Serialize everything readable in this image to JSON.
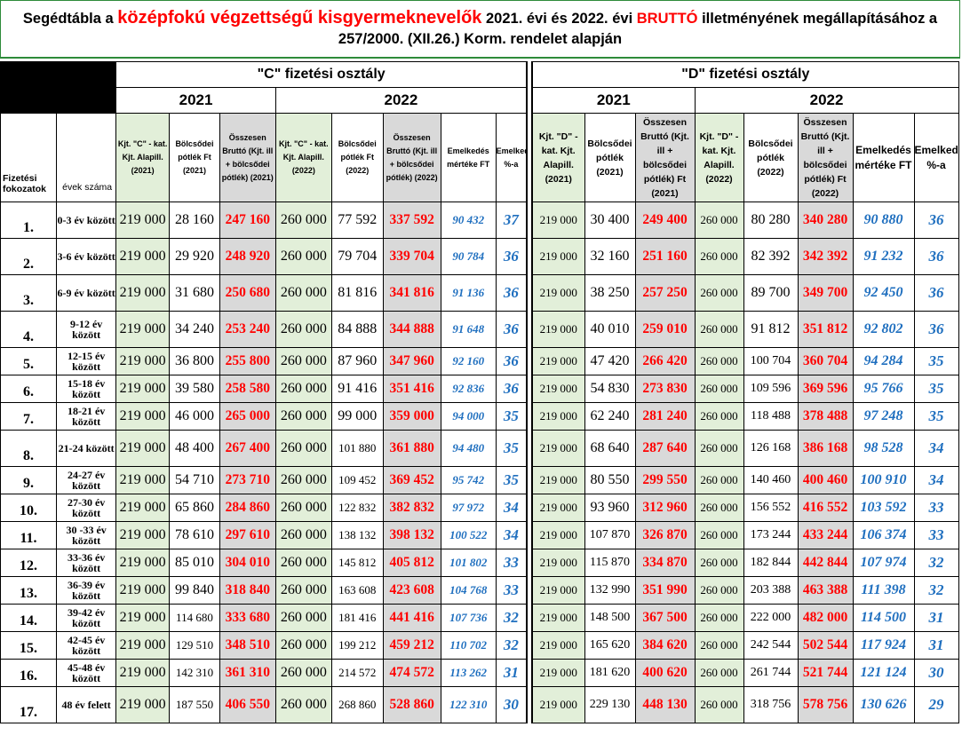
{
  "title": {
    "line1_pre": "Segédtábla a ",
    "line1_red1": "középfokú végzettségű kisgyermeknevelők",
    "line1_mid": " 2021. évi és 2022. évi ",
    "line1_red2": "BRUTTÓ",
    "line1_post": " illetményének megállapításához a",
    "line2": "257/2000. (XII.26.) Korm. rendelet alapján"
  },
  "classes": {
    "c": "\"C\" fizetési osztály",
    "d": "\"D\" fizetési osztály"
  },
  "years": {
    "y2021": "2021",
    "y2022": "2022"
  },
  "headers": {
    "fokozat": "Fizetési fokozatok",
    "evek": "évek száma",
    "c_base21": "Kjt. \"C\" - kat. Kjt. Alapill. (2021)",
    "c_potlek21": "Bölcsődei pótlék Ft (2021)",
    "c_total21": "Összesen Bruttó (Kjt. ill + bölcsődei pótlék) (2021)",
    "c_base22": "Kjt. \"C\" - kat. Kjt. Alapill. (2022)",
    "c_potlek22": "Bölcsődei pótlék Ft (2022)",
    "c_total22": "Összesen Bruttó (Kjt. ill + bölcsődei pótlék) (2022)",
    "c_inc": "Emelkedés mértéke FT",
    "c_pct": "Emelkedés %-a",
    "d_base21": "Kjt. \"D\" - kat. Kjt. Alapill. (2021)",
    "d_potlek21": "Bölcsődei pótlék (2021)",
    "d_total21": "Összesen Bruttó (Kjt. ill + bölcsődei pótlék) Ft (2021)",
    "d_base22": "Kjt. \"D\" - kat. Kjt. Alapill. (2022)",
    "d_potlek22": "Bölcsődei pótlék (2022)",
    "d_total22": "Összesen Bruttó (Kjt. ill + bölcsődei pótlék) Ft (2022)",
    "d_inc": "Emelkedés mértéke FT",
    "d_pct": "Emelkedés %-a"
  },
  "rows": [
    {
      "step": "1.",
      "interval": "0-3 év között",
      "c": [
        "219 000",
        "28 160",
        "247 160",
        "260 000",
        "77 592",
        "337 592",
        "90 432",
        "37"
      ],
      "d": [
        "219 000",
        "30 400",
        "249 400",
        "260 000",
        "80 280",
        "340 280",
        "90 880",
        "36"
      ]
    },
    {
      "step": "2.",
      "interval": "3-6 év között",
      "c": [
        "219 000",
        "29 920",
        "248 920",
        "260 000",
        "79 704",
        "339 704",
        "90 784",
        "36"
      ],
      "d": [
        "219 000",
        "32 160",
        "251 160",
        "260 000",
        "82 392",
        "342 392",
        "91 232",
        "36"
      ]
    },
    {
      "step": "3.",
      "interval": "6-9 év között",
      "c": [
        "219 000",
        "31 680",
        "250 680",
        "260 000",
        "81 816",
        "341 816",
        "91 136",
        "36"
      ],
      "d": [
        "219 000",
        "38 250",
        "257 250",
        "260 000",
        "89 700",
        "349 700",
        "92 450",
        "36"
      ]
    },
    {
      "step": "4.",
      "interval": "9-12 év között",
      "c": [
        "219 000",
        "34 240",
        "253 240",
        "260 000",
        "84 888",
        "344 888",
        "91 648",
        "36"
      ],
      "d": [
        "219 000",
        "40 010",
        "259 010",
        "260 000",
        "91 812",
        "351 812",
        "92 802",
        "36"
      ]
    },
    {
      "step": "5.",
      "interval": "12-15 év között",
      "c": [
        "219 000",
        "36 800",
        "255 800",
        "260 000",
        "87 960",
        "347 960",
        "92 160",
        "36"
      ],
      "d": [
        "219 000",
        "47 420",
        "266 420",
        "260 000",
        "100 704",
        "360 704",
        "94 284",
        "35"
      ]
    },
    {
      "step": "6.",
      "interval": "15-18 év között",
      "c": [
        "219 000",
        "39 580",
        "258 580",
        "260 000",
        "91 416",
        "351 416",
        "92 836",
        "36"
      ],
      "d": [
        "219 000",
        "54 830",
        "273 830",
        "260 000",
        "109 596",
        "369 596",
        "95 766",
        "35"
      ]
    },
    {
      "step": "7.",
      "interval": "18-21 év között",
      "c": [
        "219 000",
        "46 000",
        "265 000",
        "260 000",
        "99 000",
        "359 000",
        "94 000",
        "35"
      ],
      "d": [
        "219 000",
        "62 240",
        "281 240",
        "260 000",
        "118 488",
        "378 488",
        "97 248",
        "35"
      ]
    },
    {
      "step": "8.",
      "interval": "21-24 között",
      "c": [
        "219 000",
        "48 400",
        "267 400",
        "260 000",
        "101 880",
        "361 880",
        "94 480",
        "35"
      ],
      "d": [
        "219 000",
        "68 640",
        "287 640",
        "260 000",
        "126 168",
        "386 168",
        "98 528",
        "34"
      ]
    },
    {
      "step": "9.",
      "interval": "24-27 év között",
      "c": [
        "219 000",
        "54 710",
        "273 710",
        "260 000",
        "109 452",
        "369 452",
        "95 742",
        "35"
      ],
      "d": [
        "219 000",
        "80 550",
        "299 550",
        "260 000",
        "140 460",
        "400 460",
        "100 910",
        "34"
      ]
    },
    {
      "step": "10.",
      "interval": "27-30 év között",
      "c": [
        "219 000",
        "65 860",
        "284 860",
        "260 000",
        "122 832",
        "382 832",
        "97 972",
        "34"
      ],
      "d": [
        "219 000",
        "93 960",
        "312 960",
        "260 000",
        "156 552",
        "416 552",
        "103 592",
        "33"
      ]
    },
    {
      "step": "11.",
      "interval": "30 -33 év között",
      "c": [
        "219 000",
        "78 610",
        "297 610",
        "260 000",
        "138 132",
        "398 132",
        "100 522",
        "34"
      ],
      "d": [
        "219 000",
        "107 870",
        "326 870",
        "260 000",
        "173 244",
        "433 244",
        "106 374",
        "33"
      ]
    },
    {
      "step": "12.",
      "interval": "33-36 év között",
      "c": [
        "219 000",
        "85 010",
        "304 010",
        "260 000",
        "145 812",
        "405 812",
        "101 802",
        "33"
      ],
      "d": [
        "219 000",
        "115 870",
        "334 870",
        "260 000",
        "182 844",
        "442 844",
        "107 974",
        "32"
      ]
    },
    {
      "step": "13.",
      "interval": "36-39 év között",
      "c": [
        "219 000",
        "99 840",
        "318 840",
        "260 000",
        "163 608",
        "423 608",
        "104 768",
        "33"
      ],
      "d": [
        "219 000",
        "132 990",
        "351 990",
        "260 000",
        "203 388",
        "463 388",
        "111 398",
        "32"
      ]
    },
    {
      "step": "14.",
      "interval": "39-42 év között",
      "c": [
        "219 000",
        "114 680",
        "333 680",
        "260 000",
        "181 416",
        "441 416",
        "107 736",
        "32"
      ],
      "d": [
        "219 000",
        "148 500",
        "367 500",
        "260 000",
        "222 000",
        "482 000",
        "114 500",
        "31"
      ]
    },
    {
      "step": "15.",
      "interval": "42-45 év között",
      "c": [
        "219 000",
        "129 510",
        "348 510",
        "260 000",
        "199 212",
        "459 212",
        "110 702",
        "32"
      ],
      "d": [
        "219 000",
        "165 620",
        "384 620",
        "260 000",
        "242 544",
        "502 544",
        "117 924",
        "31"
      ]
    },
    {
      "step": "16.",
      "interval": "45-48 év között",
      "c": [
        "219 000",
        "142 310",
        "361 310",
        "260 000",
        "214 572",
        "474 572",
        "113 262",
        "31"
      ],
      "d": [
        "219 000",
        "181 620",
        "400 620",
        "260 000",
        "261 744",
        "521 744",
        "121 124",
        "30"
      ]
    },
    {
      "step": "17.",
      "interval": "48 év felett",
      "c": [
        "219 000",
        "187 550",
        "406 550",
        "260 000",
        "268 860",
        "528 860",
        "122 310",
        "30"
      ],
      "d": [
        "219 000",
        "229 130",
        "448 130",
        "260 000",
        "318 756",
        "578 756",
        "130 626",
        "29"
      ]
    }
  ]
}
